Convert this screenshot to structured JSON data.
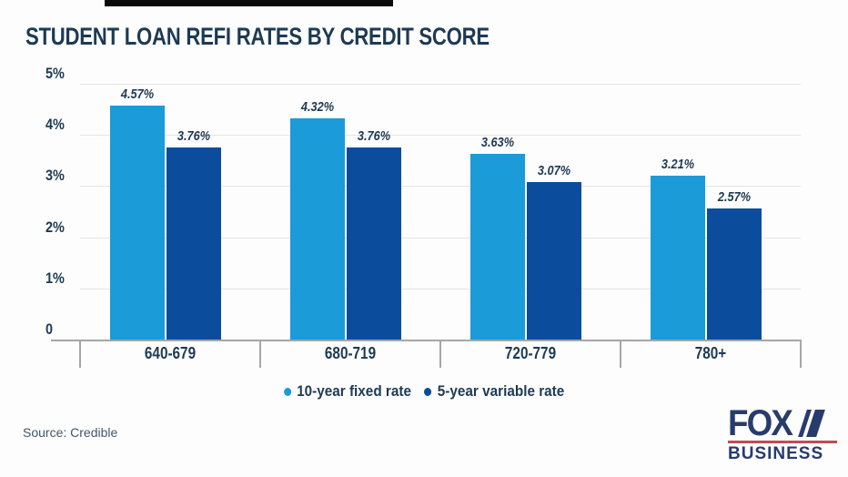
{
  "page": {
    "title": "STUDENT LOAN REFI RATES BY CREDIT SCORE",
    "source_text": "Source: Credible",
    "logo": {
      "line1": "FOX",
      "line2": "BUSINESS"
    }
  },
  "colors": {
    "title_navy": "#1d3a53",
    "light_blue": "#1b9bd8",
    "dark_blue": "#0b4d9c",
    "gridline": "#e4e4e4",
    "axis_gray": "#a6a6a6",
    "source_gray": "#44566b",
    "logo_navy": "#273c6c",
    "logo_red": "#c14b55",
    "top_bar_black": "#0a0a0a"
  },
  "chart_data": {
    "type": "bar",
    "title": "STUDENT LOAN REFI RATES BY CREDIT SCORE",
    "categories": [
      "640-679",
      "680-719",
      "720-779",
      "780+"
    ],
    "series": [
      {
        "name": "10-year fixed rate",
        "values": [
          4.57,
          4.32,
          3.63,
          3.21
        ],
        "labels": [
          "4.57%",
          "4.32%",
          "3.63%",
          "3.21%"
        ],
        "color": "#1b9bd8"
      },
      {
        "name": "5-year variable rate",
        "values": [
          3.76,
          3.76,
          3.07,
          2.57
        ],
        "labels": [
          "3.76%",
          "3.76%",
          "3.07%",
          "2.57%"
        ],
        "color": "#0b4d9c"
      }
    ],
    "xlabel": "",
    "ylabel": "",
    "ylim": [
      0,
      5
    ],
    "yticks": [
      {
        "label": "5%",
        "value": 5
      },
      {
        "label": "4%",
        "value": 4
      },
      {
        "label": "3%",
        "value": 3
      },
      {
        "label": "2%",
        "value": 2
      },
      {
        "label": "1%",
        "value": 1
      },
      {
        "label": "0",
        "value": 0
      }
    ],
    "grid": true,
    "legend_position": "bottom",
    "source": "Credible"
  }
}
